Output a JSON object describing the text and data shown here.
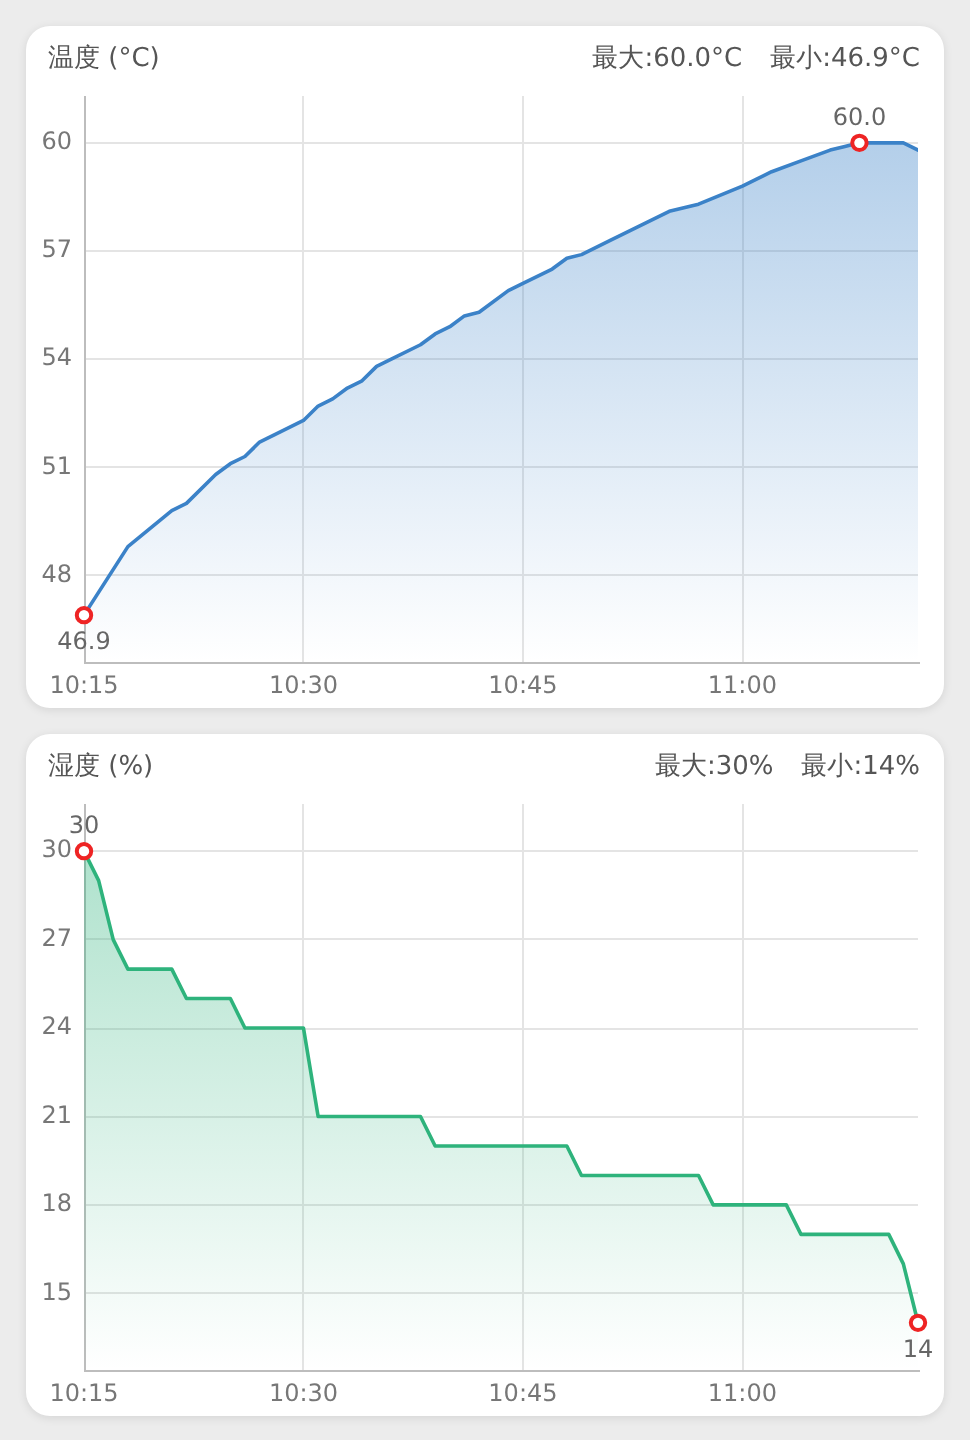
{
  "chart_data": [
    {
      "type": "area",
      "title": "温度 (°C)",
      "annotations": [
        "最大:60.0°C",
        "最小:46.9°C",
        {
          "text": "60.0",
          "x": 11.1333,
          "y": 60.0
        },
        {
          "text": "46.9",
          "x": 10.25,
          "y": 46.9
        }
      ],
      "x": [
        10.25,
        10.3,
        10.35,
        10.3667,
        10.4,
        10.4167,
        10.4333,
        10.45,
        10.4667,
        10.5,
        10.5167,
        10.5333,
        10.55,
        10.5667,
        10.5833,
        10.6,
        10.6333,
        10.65,
        10.6667,
        10.6833,
        10.7,
        10.7333,
        10.75,
        10.7833,
        10.8,
        10.8167,
        10.85,
        10.9167,
        10.95,
        11.0,
        11.0167,
        11.0333,
        11.0667,
        11.1,
        11.1167,
        11.1333,
        11.1833,
        11.2
      ],
      "values": [
        46.9,
        48.8,
        49.8,
        50.0,
        50.8,
        51.1,
        51.3,
        51.7,
        51.9,
        52.3,
        52.7,
        52.9,
        53.2,
        53.4,
        53.8,
        54.0,
        54.4,
        54.7,
        54.9,
        55.2,
        55.3,
        55.9,
        56.1,
        56.5,
        56.8,
        56.9,
        57.3,
        58.1,
        58.3,
        58.8,
        59.0,
        59.2,
        59.5,
        59.8,
        59.9,
        60.0,
        60.0,
        59.8
      ],
      "color": "#3b82c8",
      "xlim": [
        10.25,
        11.2
      ],
      "xticks": [
        {
          "value": 10.25,
          "label": "10:15"
        },
        {
          "value": 10.5,
          "label": "10:30"
        },
        {
          "value": 10.75,
          "label": "10:45"
        },
        {
          "value": 11,
          "label": "11:00"
        }
      ],
      "ylim": [
        45.6,
        61.3
      ],
      "yticks": [
        48,
        51,
        54,
        57,
        60
      ],
      "grid": true
    },
    {
      "type": "area",
      "title": "湿度 (%)",
      "annotations": [
        "最大:30%",
        "最小:14%",
        {
          "text": "30",
          "x": 10.25,
          "y": 30
        },
        {
          "text": "14",
          "x": 11.2,
          "y": 14
        }
      ],
      "x": [
        10.25,
        10.2667,
        10.2833,
        10.3,
        10.35,
        10.3667,
        10.4167,
        10.4333,
        10.5,
        10.5167,
        10.6333,
        10.65,
        10.8,
        10.8167,
        10.95,
        10.9667,
        11.05,
        11.0667,
        11.1667,
        11.1833,
        11.2
      ],
      "values": [
        30,
        29,
        27,
        26,
        26,
        25,
        25,
        24,
        24,
        21,
        21,
        20,
        20,
        19,
        19,
        18,
        18,
        17,
        17,
        16,
        14
      ],
      "color": "#2eb37c",
      "xlim": [
        10.25,
        11.2
      ],
      "xticks": [
        {
          "value": 10.25,
          "label": "10:15"
        },
        {
          "value": 10.5,
          "label": "10:30"
        },
        {
          "value": 10.75,
          "label": "10:45"
        },
        {
          "value": 11,
          "label": "11:00"
        }
      ],
      "ylim": [
        12.4,
        31.6
      ],
      "yticks": [
        15,
        18,
        21,
        24,
        27,
        30
      ],
      "grid": true
    }
  ]
}
